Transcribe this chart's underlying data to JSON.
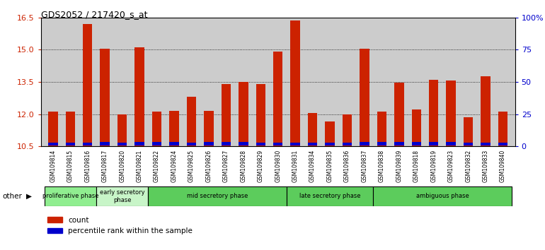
{
  "title": "GDS2052 / 217420_s_at",
  "samples": [
    "GSM109814",
    "GSM109815",
    "GSM109816",
    "GSM109817",
    "GSM109820",
    "GSM109821",
    "GSM109822",
    "GSM109824",
    "GSM109825",
    "GSM109826",
    "GSM109827",
    "GSM109828",
    "GSM109829",
    "GSM109830",
    "GSM109831",
    "GSM109834",
    "GSM109835",
    "GSM109836",
    "GSM109837",
    "GSM109838",
    "GSM109839",
    "GSM109818",
    "GSM109819",
    "GSM109823",
    "GSM109832",
    "GSM109833",
    "GSM109840"
  ],
  "red_values": [
    12.1,
    12.1,
    16.2,
    15.05,
    12.0,
    15.1,
    12.1,
    12.15,
    12.8,
    12.15,
    13.4,
    13.5,
    13.4,
    14.9,
    16.35,
    12.05,
    11.65,
    12.0,
    15.05,
    12.1,
    13.45,
    12.2,
    13.6,
    13.55,
    11.85,
    13.75,
    12.1
  ],
  "blue_values": [
    0.15,
    0.15,
    0.15,
    0.18,
    0.15,
    0.18,
    0.18,
    0.18,
    0.15,
    0.18,
    0.18,
    0.18,
    0.15,
    0.15,
    0.15,
    0.15,
    0.15,
    0.15,
    0.18,
    0.18,
    0.18,
    0.18,
    0.18,
    0.18,
    0.15,
    0.15,
    0.15
  ],
  "ymin": 10.5,
  "ymax": 16.5,
  "y2min": 0,
  "y2max": 100,
  "yticks": [
    10.5,
    12.0,
    13.5,
    15.0,
    16.5
  ],
  "y2ticks": [
    0,
    25,
    50,
    75,
    100
  ],
  "y2ticklabels": [
    "0",
    "25",
    "50",
    "75",
    "100%"
  ],
  "phases": [
    {
      "label": "proliferative phase",
      "start": 0,
      "end": 3,
      "color": "#90EE90"
    },
    {
      "label": "early secretory\nphase",
      "start": 3,
      "end": 6,
      "color": "#c8f5c8"
    },
    {
      "label": "mid secretory phase",
      "start": 6,
      "end": 14,
      "color": "#5ccc5c"
    },
    {
      "label": "late secretory phase",
      "start": 14,
      "end": 19,
      "color": "#5ccc5c"
    },
    {
      "label": "ambiguous phase",
      "start": 19,
      "end": 27,
      "color": "#5ccc5c"
    }
  ],
  "bar_width": 0.55,
  "plot_bg": "#cccccc",
  "tick_bg": "#bbbbbb",
  "red_color": "#cc2200",
  "blue_color": "#0000cc"
}
